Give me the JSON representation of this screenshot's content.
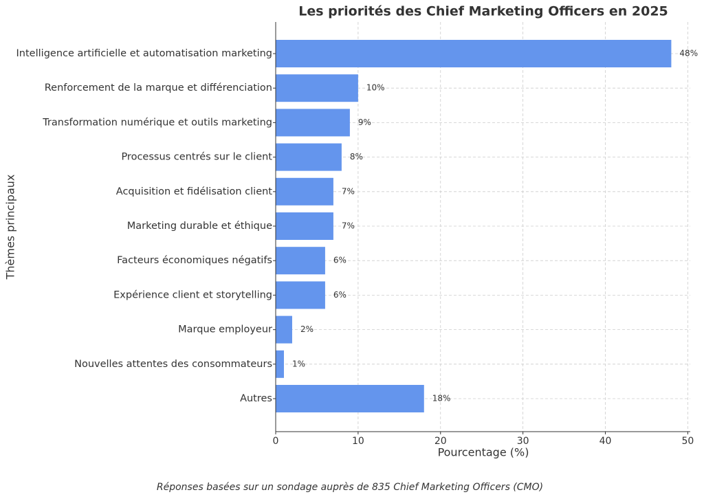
{
  "chart_data": {
    "type": "barh",
    "title": "Les priorités des Chief Marketing Officers en 2025",
    "xlabel": "Pourcentage (%)",
    "ylabel": "Thèmes principaux",
    "footnote": "Réponses basées sur un sondage auprès de 835 Chief Marketing Officers (CMO)",
    "categories": [
      "Intelligence artificielle et automatisation marketing",
      "Renforcement de la marque et différenciation",
      "Transformation numérique et outils marketing",
      "Processus centrés sur le client",
      "Acquisition et fidélisation client",
      "Marketing durable et éthique",
      "Facteurs économiques négatifs",
      "Expérience client et storytelling",
      "Marque employeur",
      "Nouvelles attentes des consommateurs",
      "Autres"
    ],
    "values": [
      48,
      10,
      9,
      8,
      7,
      7,
      6,
      6,
      2,
      1,
      18
    ],
    "value_labels": [
      "48%",
      "10%",
      "9%",
      "8%",
      "7%",
      "7%",
      "6%",
      "6%",
      "2%",
      "1%",
      "18%"
    ],
    "color": "#6495ed",
    "xlim": [
      0,
      50.3
    ],
    "xticks": [
      0,
      10,
      20,
      30,
      40,
      50
    ],
    "grid": true
  }
}
